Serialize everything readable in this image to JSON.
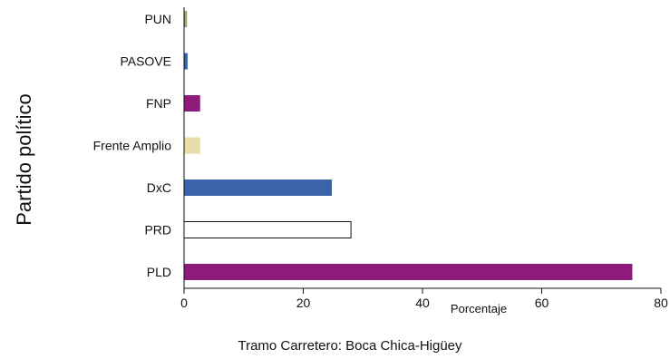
{
  "chart_data": {
    "type": "bar",
    "orientation": "horizontal",
    "categories": [
      "PUN",
      "PASOVE",
      "FNP",
      "Frente Amplio",
      "DxC",
      "PRD",
      "PLD"
    ],
    "values": [
      0.5,
      0.6,
      2.7,
      2.7,
      24.8,
      28.0,
      75.2
    ],
    "colors": [
      "#a3a06a",
      "#3b63a8",
      "#8e1a7c",
      "#e6dea6",
      "#3b63a8",
      "#ffffff",
      "#8e1a7c"
    ],
    "xlabel": "Porcentaje",
    "ylabel": "Partido político",
    "caption": "Tramo Carretero: Boca Chica-Higüey",
    "xlim": [
      0,
      80
    ],
    "xticks": [
      0,
      20,
      40,
      60,
      80
    ],
    "grid": false,
    "legend": "none"
  }
}
